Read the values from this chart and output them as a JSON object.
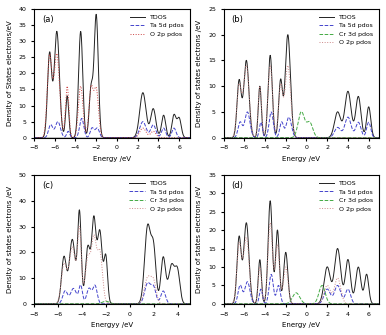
{
  "panels": [
    {
      "label": "(a)",
      "xlim": [
        -8,
        7
      ],
      "ylim": [
        0,
        40
      ],
      "yticks": [
        0,
        5,
        10,
        15,
        20,
        25,
        30,
        35,
        40
      ],
      "xlabel": "Energy /eV",
      "ylabel": "Density of States electrons/eV",
      "legend": [
        "TDOS",
        "Ta 5d pdos",
        "O 2p pdos"
      ],
      "legend_colors": [
        "#222222",
        "#4444cc",
        "#cc4444"
      ],
      "legend_styles": [
        "solid",
        "dashed",
        "dotted"
      ]
    },
    {
      "label": "(b)",
      "xlim": [
        -8,
        7
      ],
      "ylim": [
        0,
        25
      ],
      "yticks": [
        0,
        5,
        10,
        15,
        20,
        25
      ],
      "xlabel": "Energy /eV",
      "ylabel": "Density of states electrons /eV",
      "legend": [
        "TDOS",
        "Ta 5d pdos",
        "Cr 3d pdos",
        "O 2p pdos"
      ],
      "legend_colors": [
        "#222222",
        "#4444cc",
        "#44aa44",
        "#cc8888"
      ],
      "legend_styles": [
        "solid",
        "dashed",
        "dashed",
        "dotted"
      ]
    },
    {
      "label": "(c)",
      "xlim": [
        -8,
        5
      ],
      "ylim": [
        0,
        50
      ],
      "yticks": [
        0,
        10,
        20,
        30,
        40,
        50
      ],
      "xlabel": "Energyy /eV",
      "ylabel": "Density of states electrons /eV",
      "legend": [
        "TDOS",
        "Ta 5d pdos",
        "Cr 3d pdos",
        "O 2p pdos"
      ],
      "legend_colors": [
        "#222222",
        "#4444cc",
        "#44aa44",
        "#cc8888"
      ],
      "legend_styles": [
        "solid",
        "dashed",
        "dashed",
        "dotted"
      ]
    },
    {
      "label": "(d)",
      "xlim": [
        -8,
        7
      ],
      "ylim": [
        0,
        35
      ],
      "yticks": [
        0,
        5,
        10,
        15,
        20,
        25,
        30,
        35
      ],
      "xlabel": "Energy /eV",
      "ylabel": "Density of states electrons /eV",
      "legend": [
        "TDOS",
        "Ta 5d pdos",
        "Cr 3d pdos",
        "O 2p pdos"
      ],
      "legend_colors": [
        "#222222",
        "#4444cc",
        "#44aa44",
        "#cc8888"
      ],
      "legend_styles": [
        "solid",
        "dashed",
        "dashed",
        "dotted"
      ]
    }
  ]
}
